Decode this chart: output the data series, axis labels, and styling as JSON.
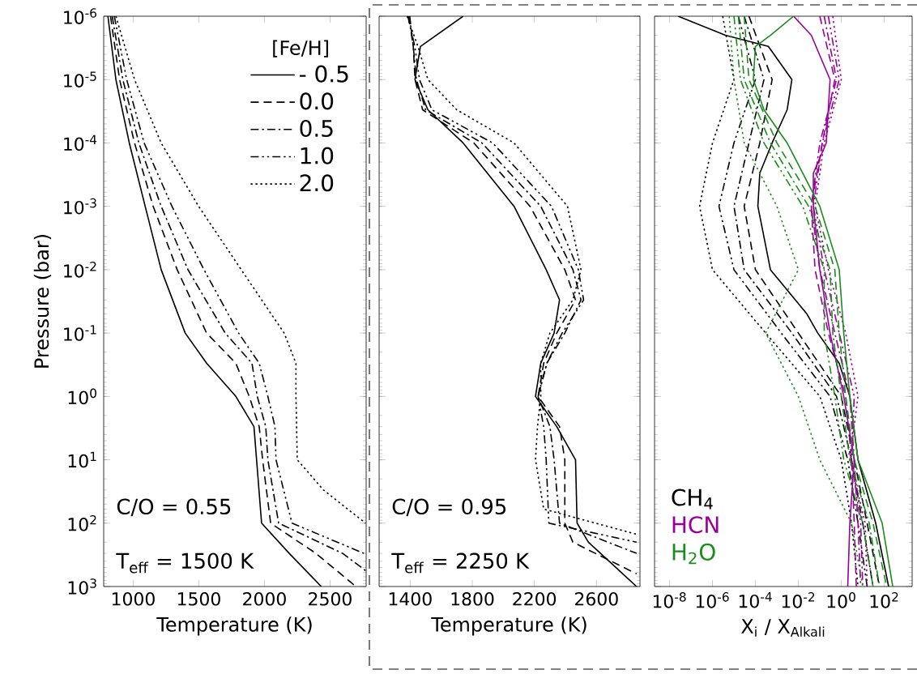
{
  "chart_data": [
    {
      "type": "line",
      "xlabel": "Temperature (K)",
      "ylabel": "Pressure (bar)",
      "legend_title": "[Fe/H]",
      "legend": "top right",
      "log": "y",
      "annotations": [
        "C/O = 0.55",
        "T$_{eff}$ = 1500 K"
      ],
      "xlim": [
        775,
        2775
      ],
      "ylim": [
        1000,
        1e-06
      ],
      "xticks": [
        1000,
        1500,
        2000,
        2500
      ],
      "yticks": [
        {
          "value": 1e-06,
          "label": "10$^{-6}$"
        },
        {
          "value": 1e-05,
          "label": "10$^{-5}$"
        },
        {
          "value": 0.0001,
          "label": "10$^{-4}$"
        },
        {
          "value": 0.001,
          "label": "10$^{-3}$"
        },
        {
          "value": 0.01,
          "label": "10$^{-2}$"
        },
        {
          "value": 0.1,
          "label": "10$^{-1}$"
        },
        {
          "value": 1,
          "label": "10$^{0}$"
        },
        {
          "value": 10,
          "label": "10$^{1}$"
        },
        {
          "value": 100,
          "label": "10$^{2}$"
        },
        {
          "value": 1000,
          "label": "10$^{3}$"
        }
      ],
      "series": [
        {
          "name": "- 0.5",
          "color": "#000000",
          "line_style": "solid",
          "x": [
            807,
            868,
            970,
            1091,
            1213,
            1396,
            1560,
            1782,
            1920,
            1940,
            1978,
            2189,
            2433
          ],
          "values": [
            1e-06,
            1e-05,
            0.0001,
            0.001,
            0.01,
            0.1,
            0.3,
            1,
            3,
            10,
            100,
            300,
            1000
          ]
        },
        {
          "name": "0.0",
          "color": "#000000",
          "line_style": "dashed",
          "x": [
            827,
            896,
            1010,
            1152,
            1335,
            1559,
            1782,
            1884,
            1960,
            1986,
            2047,
            2392,
            2697
          ],
          "values": [
            1e-06,
            1e-05,
            0.0001,
            0.001,
            0.01,
            0.1,
            0.3,
            1,
            3,
            10,
            100,
            300,
            1000
          ]
        },
        {
          "name": "0.5",
          "color": "#000000",
          "line_style": "dashdot",
          "x": [
            840,
            921,
            1043,
            1213,
            1417,
            1701,
            1905,
            1945,
            2010,
            2026,
            2108,
            2596,
            2770
          ],
          "values": [
            1e-06,
            1e-05,
            0.0001,
            0.001,
            0.01,
            0.1,
            0.3,
            1,
            3,
            10,
            100,
            300,
            560
          ]
        },
        {
          "name": "1.0",
          "color": "#000000",
          "line_style": "dashdotdot",
          "x": [
            856,
            950,
            1083,
            1295,
            1539,
            1803,
            1960,
            2026,
            2080,
            2088,
            2210,
            2758
          ],
          "values": [
            1e-06,
            1e-05,
            0.0001,
            0.001,
            0.01,
            0.1,
            0.3,
            1,
            3,
            10,
            100,
            300
          ]
        },
        {
          "name": "2.0",
          "color": "#000000",
          "line_style": "dotted",
          "x": [
            868,
            1010,
            1213,
            1498,
            1823,
            2150,
            2240,
            2240,
            2250,
            2450,
            2770
          ],
          "values": [
            1e-06,
            1e-05,
            0.0001,
            0.001,
            0.01,
            0.1,
            0.3,
            1,
            10,
            30,
            100
          ]
        }
      ]
    },
    {
      "type": "line",
      "xlabel": "Temperature (K)",
      "log": "y",
      "tick_labels": "x",
      "annotations": [
        "C/O = 0.95",
        "T$_{eff}$ = 2250 K"
      ],
      "xlim": [
        1200,
        2880
      ],
      "ylim": [
        1000,
        1e-06
      ],
      "xticks": [
        1400,
        1800,
        2200,
        2600
      ],
      "yticks": [
        {
          "value": 1e-06,
          "label": null
        },
        {
          "value": 1e-05,
          "label": null
        },
        {
          "value": 0.0001,
          "label": null
        },
        {
          "value": 0.001,
          "label": null
        },
        {
          "value": 0.01,
          "label": null
        },
        {
          "value": 0.1,
          "label": null
        },
        {
          "value": 1,
          "label": null
        },
        {
          "value": 10,
          "label": null
        },
        {
          "value": 100,
          "label": null
        },
        {
          "value": 1000,
          "label": null
        }
      ],
      "series": [
        {
          "color": "#000000",
          "line_style": "solid",
          "x": [
            1741,
            1466,
            1431,
            1514,
            1741,
            2069,
            2276,
            2362,
            2327,
            2241,
            2207,
            2344,
            2465,
            2475,
            2548,
            2858
          ],
          "values": [
            1e-06,
            3e-06,
            1e-05,
            3e-05,
            0.0001,
            0.001,
            0.01,
            0.03,
            0.1,
            0.3,
            1,
            3,
            10,
            100,
            200,
            1000
          ]
        },
        {
          "color": "#000000",
          "line_style": "dashed",
          "x": [
            1397,
            1420,
            1431,
            1480,
            1810,
            2172,
            2396,
            2465,
            2344,
            2260,
            2224,
            2362,
            2396,
            2396,
            2448,
            2858
          ],
          "values": [
            1e-06,
            3e-06,
            1e-05,
            3e-05,
            0.0001,
            0.001,
            0.01,
            0.03,
            0.1,
            0.3,
            1,
            3,
            10,
            100,
            200,
            630
          ]
        },
        {
          "color": "#000000",
          "line_style": "dashdot",
          "x": [
            1390,
            1420,
            1440,
            1500,
            1862,
            2241,
            2448,
            2500,
            2396,
            2280,
            2224,
            2300,
            2327,
            2362,
            2858
          ],
          "values": [
            1e-06,
            3e-06,
            1e-05,
            3e-05,
            0.0001,
            0.001,
            0.01,
            0.03,
            0.1,
            0.3,
            1,
            3,
            10,
            100,
            300
          ]
        },
        {
          "color": "#000000",
          "line_style": "dashdotdot",
          "x": [
            1385,
            1430,
            1460,
            1540,
            1931,
            2310,
            2483,
            2517,
            2379,
            2280,
            2224,
            2260,
            2276,
            2293,
            2858
          ],
          "values": [
            1e-06,
            3e-06,
            1e-05,
            3e-05,
            0.0001,
            0.001,
            0.01,
            0.03,
            0.1,
            0.3,
            1,
            3,
            10,
            100,
            200
          ]
        },
        {
          "color": "#000000",
          "line_style": "dotted",
          "x": [
            1380,
            1450,
            1514,
            1700,
            2069,
            2413,
            2500,
            2448,
            2300,
            2241,
            2241,
            2220,
            2207,
            2260,
            2858
          ],
          "values": [
            1e-06,
            3e-06,
            1e-05,
            3e-05,
            0.0001,
            0.001,
            0.01,
            0.03,
            0.1,
            0.3,
            1,
            3,
            10,
            60,
            150
          ]
        }
      ]
    },
    {
      "type": "line",
      "xlabel": "X$_{i}$ / X$_{Alkali}$",
      "log": "xy",
      "tick_labels": "x",
      "legend": "bottom left",
      "xlim": [
        2e-09,
        2000
      ],
      "ylim": [
        1000,
        1e-06
      ],
      "xticks": [
        {
          "value": 1e-08,
          "label": "10$^{-8}$"
        },
        {
          "value": 1e-06,
          "label": "10$^{-6}$"
        },
        {
          "value": 0.0001,
          "label": "10$^{-4}$"
        },
        {
          "value": 0.01,
          "label": "10$^{-2}$"
        },
        {
          "value": 1,
          "label": "10$^{0}$"
        },
        {
          "value": 100,
          "label": "10$^{2}$"
        }
      ],
      "yticks": [
        {
          "value": 1e-06,
          "label": null
        },
        {
          "value": 1e-05,
          "label": null
        },
        {
          "value": 0.0001,
          "label": null
        },
        {
          "value": 0.001,
          "label": null
        },
        {
          "value": 0.01,
          "label": null
        },
        {
          "value": 0.1,
          "label": null
        },
        {
          "value": 1,
          "label": null
        },
        {
          "value": 10,
          "label": null
        },
        {
          "value": 100,
          "label": null
        },
        {
          "value": 1000,
          "label": null
        }
      ],
      "series": [
        {
          "name": "CH$_{4}$",
          "color": "#000000",
          "line_style": "solid",
          "x": [
            2.5e-08,
            4e-06,
            0.0004,
            0.005,
            0.003,
            0.0006,
            0.00016,
            0.00013,
            0.0005,
            0.025,
            0.08,
            0.8,
            2.5,
            6,
            40,
            160
          ],
          "values": [
            1e-06,
            2e-06,
            3e-06,
            1e-05,
            3e-05,
            0.0001,
            0.0003,
            0.001,
            0.01,
            0.05,
            0.1,
            0.3,
            1,
            10,
            100,
            1000
          ]
        },
        {
          "color": "#000000",
          "line_style": "dashed",
          "x": [
            5e-05,
            0.0006,
            0.00016,
            3e-05,
            0.0001,
            0.01,
            1,
            4,
            16,
            60
          ],
          "values": [
            1e-06,
            1e-05,
            0.0001,
            0.001,
            0.01,
            0.1,
            1,
            10,
            100,
            1000
          ]
        },
        {
          "color": "#000000",
          "line_style": "dashdot",
          "x": [
            3e-05,
            0.00025,
            5e-05,
            1e-05,
            3e-05,
            0.005,
            0.6,
            3,
            10,
            30
          ],
          "values": [
            1e-06,
            1e-05,
            0.0001,
            0.001,
            0.01,
            0.1,
            1,
            10,
            100,
            1000
          ]
        },
        {
          "color": "#000000",
          "line_style": "dashdotdot",
          "x": [
            1.6e-05,
            0.0001,
            1e-05,
            2e-06,
            1e-05,
            0.0016,
            0.3,
            2,
            6,
            16
          ],
          "values": [
            1e-06,
            1e-05,
            0.0001,
            0.001,
            0.01,
            0.1,
            1,
            10,
            100,
            1000
          ]
        },
        {
          "color": "#000000",
          "line_style": "dotted",
          "x": [
            3e-06,
            1e-05,
            1e-06,
            2.5e-07,
            1e-06,
            0.0003,
            0.1,
            1,
            3,
            6
          ],
          "values": [
            1e-06,
            1e-05,
            0.0001,
            0.001,
            0.01,
            0.1,
            1,
            10,
            100,
            1000
          ]
        },
        {
          "name": "HCN",
          "color": "#990099",
          "line_style": "solid",
          "x": [
            0.006,
            0.04,
            0.3,
            0.2,
            0.05,
            0.05,
            0.1,
            0.3,
            1.3,
            4,
            2.5,
            2
          ],
          "values": [
            1e-06,
            2e-06,
            1e-05,
            0.0001,
            0.0003,
            0.001,
            0.01,
            0.1,
            1,
            10,
            100,
            1000
          ]
        },
        {
          "color": "#990099",
          "line_style": "dashed",
          "x": [
            0.1,
            0.5,
            0.13,
            0.04,
            0.06,
            0.25,
            1.6,
            3,
            4,
            5
          ],
          "values": [
            1e-06,
            1e-05,
            0.0001,
            0.001,
            0.01,
            0.1,
            1,
            10,
            100,
            1000
          ]
        },
        {
          "color": "#990099",
          "line_style": "dashdot",
          "x": [
            0.16,
            0.6,
            0.1,
            0.04,
            0.1,
            0.5,
            2.5,
            4,
            6,
            8
          ],
          "values": [
            1e-06,
            1e-05,
            0.0001,
            0.001,
            0.01,
            0.1,
            1,
            10,
            100,
            1000
          ]
        },
        {
          "color": "#990099",
          "line_style": "dashdotdot",
          "x": [
            0.25,
            0.8,
            0.13,
            0.05,
            0.16,
            0.8,
            4,
            3,
            8,
            10
          ],
          "values": [
            1e-06,
            1e-05,
            0.0001,
            0.001,
            0.01,
            0.1,
            1,
            10,
            100,
            1000
          ]
        },
        {
          "color": "#990099",
          "line_style": "dotted",
          "x": [
            0.4,
            1,
            0.16,
            0.06,
            0.25,
            1.6,
            6,
            2.5,
            13,
            16
          ],
          "values": [
            1e-06,
            1e-05,
            0.0001,
            0.001,
            0.01,
            0.1,
            1,
            10,
            100,
            1000
          ]
        },
        {
          "name": "H$_{2}$O",
          "color": "#1a8c1a",
          "line_style": "solid",
          "x": [
            0.006,
            0.0005,
            0.0001,
            8e-05,
            0.00025,
            0.003,
            0.1,
            0.8,
            1.3,
            2.5,
            6,
            80,
            250
          ],
          "values": [
            1e-06,
            2e-06,
            3e-06,
            1e-05,
            3e-05,
            0.0001,
            0.001,
            0.01,
            0.1,
            1,
            10,
            100,
            1000
          ]
        },
        {
          "color": "#1a8c1a",
          "line_style": "dashed",
          "x": [
            3e-05,
            5e-05,
            0.001,
            0.06,
            0.5,
            0.8,
            1.6,
            4,
            30,
            130
          ],
          "values": [
            1e-06,
            1e-05,
            0.0001,
            0.001,
            0.01,
            0.1,
            1,
            10,
            100,
            1000
          ]
        },
        {
          "color": "#1a8c1a",
          "line_style": "dashdot",
          "x": [
            1.6e-05,
            3e-05,
            0.0005,
            0.03,
            0.3,
            0.4,
            1,
            2.5,
            20,
            60
          ],
          "values": [
            1e-06,
            1e-05,
            0.0001,
            0.001,
            0.01,
            0.1,
            1,
            10,
            100,
            1000
          ]
        },
        {
          "color": "#1a8c1a",
          "line_style": "dashdotdot",
          "x": [
            1e-05,
            2e-05,
            0.00025,
            0.016,
            0.16,
            0.16,
            0.5,
            1.3,
            10,
            30
          ],
          "values": [
            1e-06,
            1e-05,
            0.0001,
            0.001,
            0.01,
            0.1,
            1,
            10,
            100,
            1000
          ]
        },
        {
          "color": "#1a8c1a",
          "line_style": "dotted",
          "x": [
            6e-06,
            1e-05,
            3e-05,
            0.001,
            0.01,
            0.0003,
            0.01,
            0.1,
            3,
            10
          ],
          "values": [
            1e-06,
            1e-05,
            0.0001,
            0.001,
            0.01,
            0.1,
            1,
            10,
            100,
            1000
          ]
        }
      ]
    }
  ]
}
